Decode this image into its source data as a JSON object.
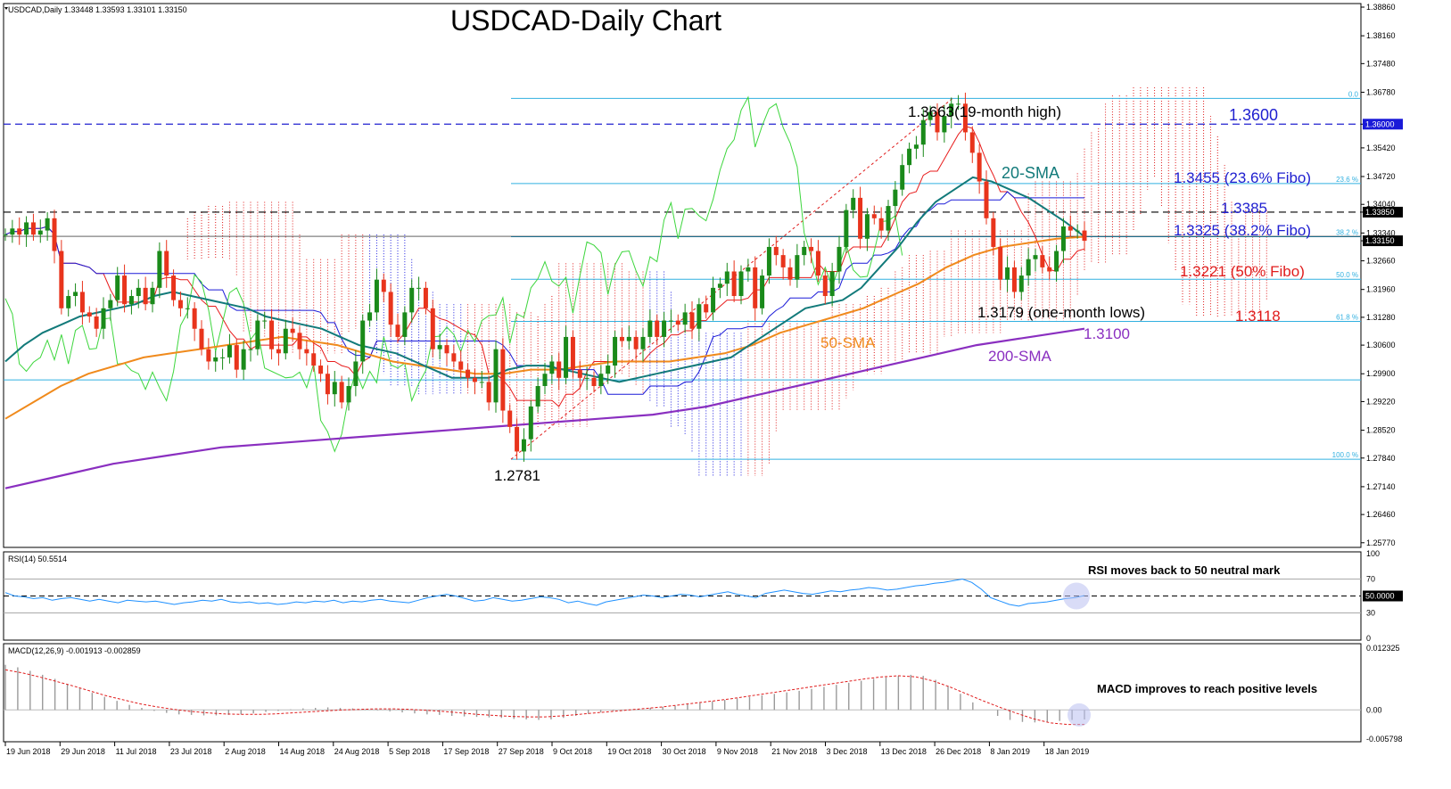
{
  "header": {
    "symbol_line": "USDCAD,Daily  1.33448 1.33593 1.33101 1.33150",
    "title": "USDCAD-Daily Chart"
  },
  "colors": {
    "bull": "#1a8a1a",
    "bear": "#e8341c",
    "sma20": "#127a7a",
    "sma50": "#f08a1c",
    "sma200": "#8a2fc0",
    "tenkan": "#e81c1c",
    "kijun": "#1a1ad8",
    "chikou": "#3dd63d",
    "fib": "#31b0e0",
    "cloud_bull": "#e01c1c",
    "cloud_bear": "#1c1ce0",
    "rsi": "#1e90ff",
    "macd_signal": "#e01c1c"
  },
  "chart_data": [
    {
      "type": "candlestick",
      "title": "USDCAD-Daily Chart",
      "ylim": [
        1.257,
        1.3886
      ],
      "price_ticks": [
        "1.38860",
        "1.38160",
        "1.37480",
        "1.36780",
        "1.36000",
        "1.35420",
        "1.34720",
        "1.34040",
        "1.33850",
        "1.33340",
        "1.33150",
        "1.32660",
        "1.31960",
        "1.31280",
        "1.30600",
        "1.29900",
        "1.29220",
        "1.28520",
        "1.27840",
        "1.27140",
        "1.26460",
        "1.25770"
      ],
      "current_price_tag": "1.33150",
      "level_tags": [
        "1.36000",
        "1.33850"
      ],
      "date_labels": [
        "19 Jun 2018",
        "29 Jun 2018",
        "11 Jul 2018",
        "23 Jul 2018",
        "2 Aug 2018",
        "14 Aug 2018",
        "24 Aug 2018",
        "5 Sep 2018",
        "17 Sep 2018",
        "27 Sep 2018",
        "9 Oct 2018",
        "19 Oct 2018",
        "30 Oct 2018",
        "9 Nov 2018",
        "21 Nov 2018",
        "3 Dec 2018",
        "13 Dec 2018",
        "26 Dec 2018",
        "8 Jan 2019",
        "18 Jan 2019"
      ],
      "horizontal_levels": [
        {
          "price": 1.36,
          "style": "dashed",
          "label": "1.3600"
        },
        {
          "price": 1.3385,
          "style": "dashed",
          "label": "1.3385"
        }
      ],
      "fibonacci": [
        {
          "ratio_label": "0.0",
          "price": 1.3663
        },
        {
          "ratio_label": "23.6 %",
          "price": 1.3455
        },
        {
          "ratio_label": "38.2 %",
          "price": 1.3325
        },
        {
          "ratio_label": "50.0 %",
          "price": 1.3221
        },
        {
          "ratio_label": "61.8 %",
          "price": 1.3118
        },
        {
          "ratio_label": "100.0 %",
          "price": 1.2781
        }
      ],
      "annotations": [
        {
          "text": "1.3663(19-month high)"
        },
        {
          "text": "1.3600"
        },
        {
          "text": "20-SMA"
        },
        {
          "text": "1.3455 (23.6% Fibo)"
        },
        {
          "text": "1.3385"
        },
        {
          "text": "1.3325 (38.2% Fibo)"
        },
        {
          "text": "1.3221 (50% Fibo)"
        },
        {
          "text": "1.3179 (one-month lows)"
        },
        {
          "text": "1.3118"
        },
        {
          "text": "50-SMA"
        },
        {
          "text": "1.3100"
        },
        {
          "text": "200-SMA"
        },
        {
          "text": "1.2781"
        }
      ],
      "close_series": [
        1.333,
        1.3345,
        1.333,
        1.336,
        1.333,
        1.334,
        1.337,
        1.329,
        1.315,
        1.318,
        1.319,
        1.314,
        1.313,
        1.31,
        1.315,
        1.317,
        1.323,
        1.316,
        1.318,
        1.32,
        1.316,
        1.32,
        1.329,
        1.323,
        1.317,
        1.315,
        1.315,
        1.31,
        1.305,
        1.302,
        1.303,
        1.303,
        1.306,
        1.3,
        1.305,
        1.305,
        1.312,
        1.312,
        1.305,
        1.304,
        1.31,
        1.309,
        1.305,
        1.304,
        1.301,
        1.299,
        1.294,
        1.297,
        1.292,
        1.296,
        1.302,
        1.312,
        1.314,
        1.322,
        1.319,
        1.311,
        1.308,
        1.314,
        1.32,
        1.32,
        1.315,
        1.305,
        1.306,
        1.304,
        1.302,
        1.3,
        1.298,
        1.297,
        1.297,
        1.292,
        1.305,
        1.29,
        1.286,
        1.28,
        1.283,
        1.291,
        1.296,
        1.299,
        1.302,
        1.298,
        1.308,
        1.3,
        1.298,
        1.298,
        1.296,
        1.299,
        1.301,
        1.308,
        1.307,
        1.308,
        1.305,
        1.308,
        1.312,
        1.308,
        1.312,
        1.312,
        1.311,
        1.314,
        1.31,
        1.316,
        1.314,
        1.32,
        1.321,
        1.324,
        1.318,
        1.324,
        1.325,
        1.315,
        1.323,
        1.33,
        1.328,
        1.325,
        1.322,
        1.328,
        1.33,
        1.329,
        1.323,
        1.318,
        1.324,
        1.33,
        1.339,
        1.342,
        1.332,
        1.338,
        1.337,
        1.334,
        1.34,
        1.344,
        1.35,
        1.354,
        1.355,
        1.361,
        1.363,
        1.358,
        1.362,
        1.365,
        1.365,
        1.358,
        1.353,
        1.346,
        1.337,
        1.33,
        1.322,
        1.325,
        1.319,
        1.323,
        1.327,
        1.328,
        1.325,
        1.324,
        1.329,
        1.335,
        1.334,
        1.334,
        1.3315
      ],
      "sma20": [
        1.302,
        1.306,
        1.309,
        1.311,
        1.313,
        1.314,
        1.315,
        1.316,
        1.318,
        1.319,
        1.318,
        1.317,
        1.316,
        1.315,
        1.313,
        1.312,
        1.311,
        1.31,
        1.308,
        1.306,
        1.305,
        1.304,
        1.302,
        1.3,
        1.298,
        1.298,
        1.298,
        1.3,
        1.301,
        1.301,
        1.3,
        1.299,
        1.298,
        1.297,
        1.298,
        1.299,
        1.3,
        1.301,
        1.302,
        1.303,
        1.306,
        1.309,
        1.312,
        1.315,
        1.316,
        1.317,
        1.32,
        1.325,
        1.33,
        1.336,
        1.341,
        1.344,
        1.347,
        1.346,
        1.344,
        1.342,
        1.339,
        1.336,
        1.3325
      ],
      "sma50": [
        1.288,
        1.292,
        1.296,
        1.299,
        1.301,
        1.303,
        1.304,
        1.305,
        1.306,
        1.307,
        1.308,
        1.307,
        1.306,
        1.304,
        1.302,
        1.301,
        1.3,
        1.299,
        1.299,
        1.3,
        1.3,
        1.301,
        1.302,
        1.302,
        1.302,
        1.303,
        1.304,
        1.306,
        1.309,
        1.311,
        1.313,
        1.315,
        1.318,
        1.321,
        1.325,
        1.328,
        1.33,
        1.331,
        1.332,
        1.3325
      ],
      "sma200": [
        1.271,
        1.274,
        1.277,
        1.279,
        1.281,
        1.282,
        1.283,
        1.284,
        1.285,
        1.286,
        1.287,
        1.288,
        1.289,
        1.291,
        1.294,
        1.297,
        1.3,
        1.303,
        1.306,
        1.308,
        1.31
      ]
    },
    {
      "type": "line",
      "title": "RSI(14) 50.5514",
      "ylim": [
        0,
        100
      ],
      "tick_labels": [
        "100",
        "70",
        "50.0000",
        "30",
        "0"
      ],
      "levels": [
        70,
        50,
        30
      ],
      "annotation": "RSI moves back to 50 neutral mark",
      "values": [
        54,
        50,
        49,
        47,
        48,
        45,
        47,
        48,
        46,
        44,
        46,
        44,
        42,
        45,
        44,
        43,
        44,
        42,
        40,
        42,
        43,
        45,
        44,
        46,
        43,
        42,
        43,
        41,
        42,
        40,
        41,
        43,
        42,
        44,
        43,
        45,
        42,
        44,
        43,
        45,
        46,
        44,
        43,
        42,
        45,
        48,
        50,
        52,
        50,
        47,
        44,
        45,
        48,
        46,
        44,
        45,
        47,
        49,
        48,
        46,
        42,
        44,
        41,
        39,
        43,
        45,
        47,
        49,
        51,
        50,
        48,
        50,
        52,
        51,
        49,
        51,
        53,
        55,
        52,
        50,
        48,
        53,
        55,
        57,
        55,
        53,
        52,
        54,
        56,
        55,
        57,
        58,
        60,
        59,
        57,
        58,
        60,
        62,
        63,
        65,
        66,
        68,
        70,
        66,
        58,
        48,
        44,
        40,
        38,
        41,
        42,
        43,
        45,
        47,
        48,
        50.5514
      ]
    },
    {
      "type": "bar",
      "title": "MACD(12,26,9) -0.001913 -0.002859",
      "ylim": [
        -0.006,
        0.0125
      ],
      "tick_labels": [
        "0.012325",
        "0.00",
        "-0.005798"
      ],
      "annotation": "MACD improves to reach positive levels",
      "macd_hist": [
        0.009,
        0.0085,
        0.0078,
        0.007,
        0.0062,
        0.0052,
        0.0043,
        0.0034,
        0.0026,
        0.0018,
        0.001,
        0.0004,
        -0.0002,
        -0.0006,
        -0.0009,
        -0.001,
        -0.0011,
        -0.0011,
        -0.001,
        -0.0009,
        -0.0007,
        -0.0004,
        -0.0002,
        0.0001,
        0.0003,
        0.0004,
        0.0005,
        0.0004,
        0.0003,
        0.0001,
        -0.0001,
        -0.0003,
        -0.0005,
        -0.0007,
        -0.0009,
        -0.001,
        -0.0012,
        -0.0013,
        -0.0014,
        -0.0015,
        -0.0016,
        -0.0018,
        -0.0019,
        -0.002,
        -0.0019,
        -0.0016,
        -0.0012,
        -0.0008,
        -0.0005,
        -0.0002,
        0.0,
        0.0002,
        0.0004,
        0.0006,
        0.0008,
        0.0011,
        0.0014,
        0.0017,
        0.002,
        0.0023,
        0.0026,
        0.0029,
        0.0032,
        0.0035,
        0.0038,
        0.0042,
        0.0046,
        0.005,
        0.0054,
        0.0058,
        0.0062,
        0.0065,
        0.0068,
        0.007,
        0.0068,
        0.006,
        0.0048,
        0.0032,
        0.0015,
        0.0,
        -0.0012,
        -0.002,
        -0.0024,
        -0.0025,
        -0.0024,
        -0.0022,
        -0.002,
        -0.0019
      ],
      "macd_signal": [
        0.008,
        0.0074,
        0.0066,
        0.0057,
        0.0048,
        0.0038,
        0.0028,
        0.002,
        0.0012,
        0.0006,
        0.0001,
        -0.0003,
        -0.0006,
        -0.0008,
        -0.0009,
        -0.0009,
        -0.0008,
        -0.0006,
        -0.0004,
        -0.0002,
        0.0,
        0.0001,
        0.0002,
        0.0002,
        0.0001,
        -0.0001,
        -0.0003,
        -0.0006,
        -0.0009,
        -0.0011,
        -0.0013,
        -0.0014,
        -0.0014,
        -0.0012,
        -0.0009,
        -0.0006,
        -0.0003,
        0.0,
        0.0003,
        0.0006,
        0.001,
        0.0014,
        0.0018,
        0.0022,
        0.0027,
        0.0032,
        0.0037,
        0.0042,
        0.0047,
        0.0052,
        0.0057,
        0.0062,
        0.0066,
        0.0068,
        0.0066,
        0.0058,
        0.0046,
        0.0032,
        0.0018,
        0.0005,
        -0.0007,
        -0.0018,
        -0.0026,
        -0.0029,
        -0.0029
      ]
    }
  ]
}
